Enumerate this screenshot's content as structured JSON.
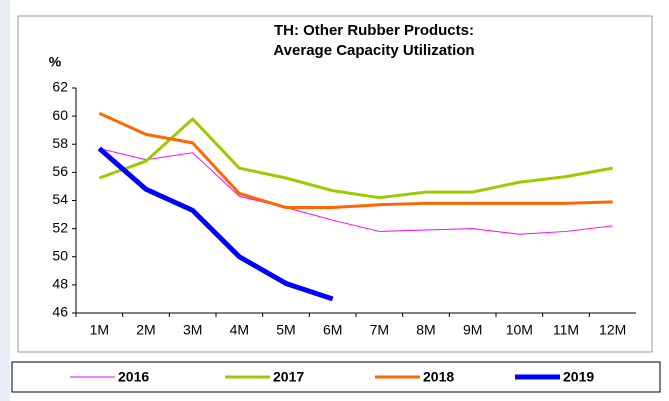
{
  "chart_data": {
    "type": "line",
    "title": "TH: Other Rubber Products:",
    "subtitle": "Average Capacity Utilization",
    "y_label": "%",
    "categories": [
      "1M",
      "2M",
      "3M",
      "4M",
      "5M",
      "6M",
      "7M",
      "8M",
      "9M",
      "10M",
      "11M",
      "12M"
    ],
    "series": [
      {
        "name": "2016",
        "color": "#ff00ff",
        "width": 1,
        "values": [
          57.7,
          56.9,
          57.4,
          54.3,
          53.5,
          52.6,
          51.8,
          51.9,
          52.0,
          51.6,
          51.8,
          52.2
        ]
      },
      {
        "name": "2017",
        "color": "#99cc00",
        "width": 3,
        "values": [
          55.6,
          56.8,
          59.8,
          56.3,
          55.6,
          54.7,
          54.2,
          54.6,
          54.6,
          55.3,
          55.7,
          56.3
        ]
      },
      {
        "name": "2018",
        "color": "#ff6600",
        "width": 3,
        "values": [
          60.2,
          58.7,
          58.1,
          54.5,
          53.5,
          53.5,
          53.7,
          53.8,
          53.8,
          53.8,
          53.8,
          53.9
        ]
      },
      {
        "name": "2019",
        "color": "#0000ff",
        "width": 5,
        "values": [
          57.7,
          54.8,
          53.3,
          50.0,
          48.1,
          47.0,
          null,
          null,
          null,
          null,
          null,
          null
        ]
      }
    ],
    "ylim": [
      46,
      62
    ],
    "yticks": [
      46,
      48,
      50,
      52,
      54,
      56,
      58,
      60,
      62
    ],
    "legend": "bottom"
  }
}
